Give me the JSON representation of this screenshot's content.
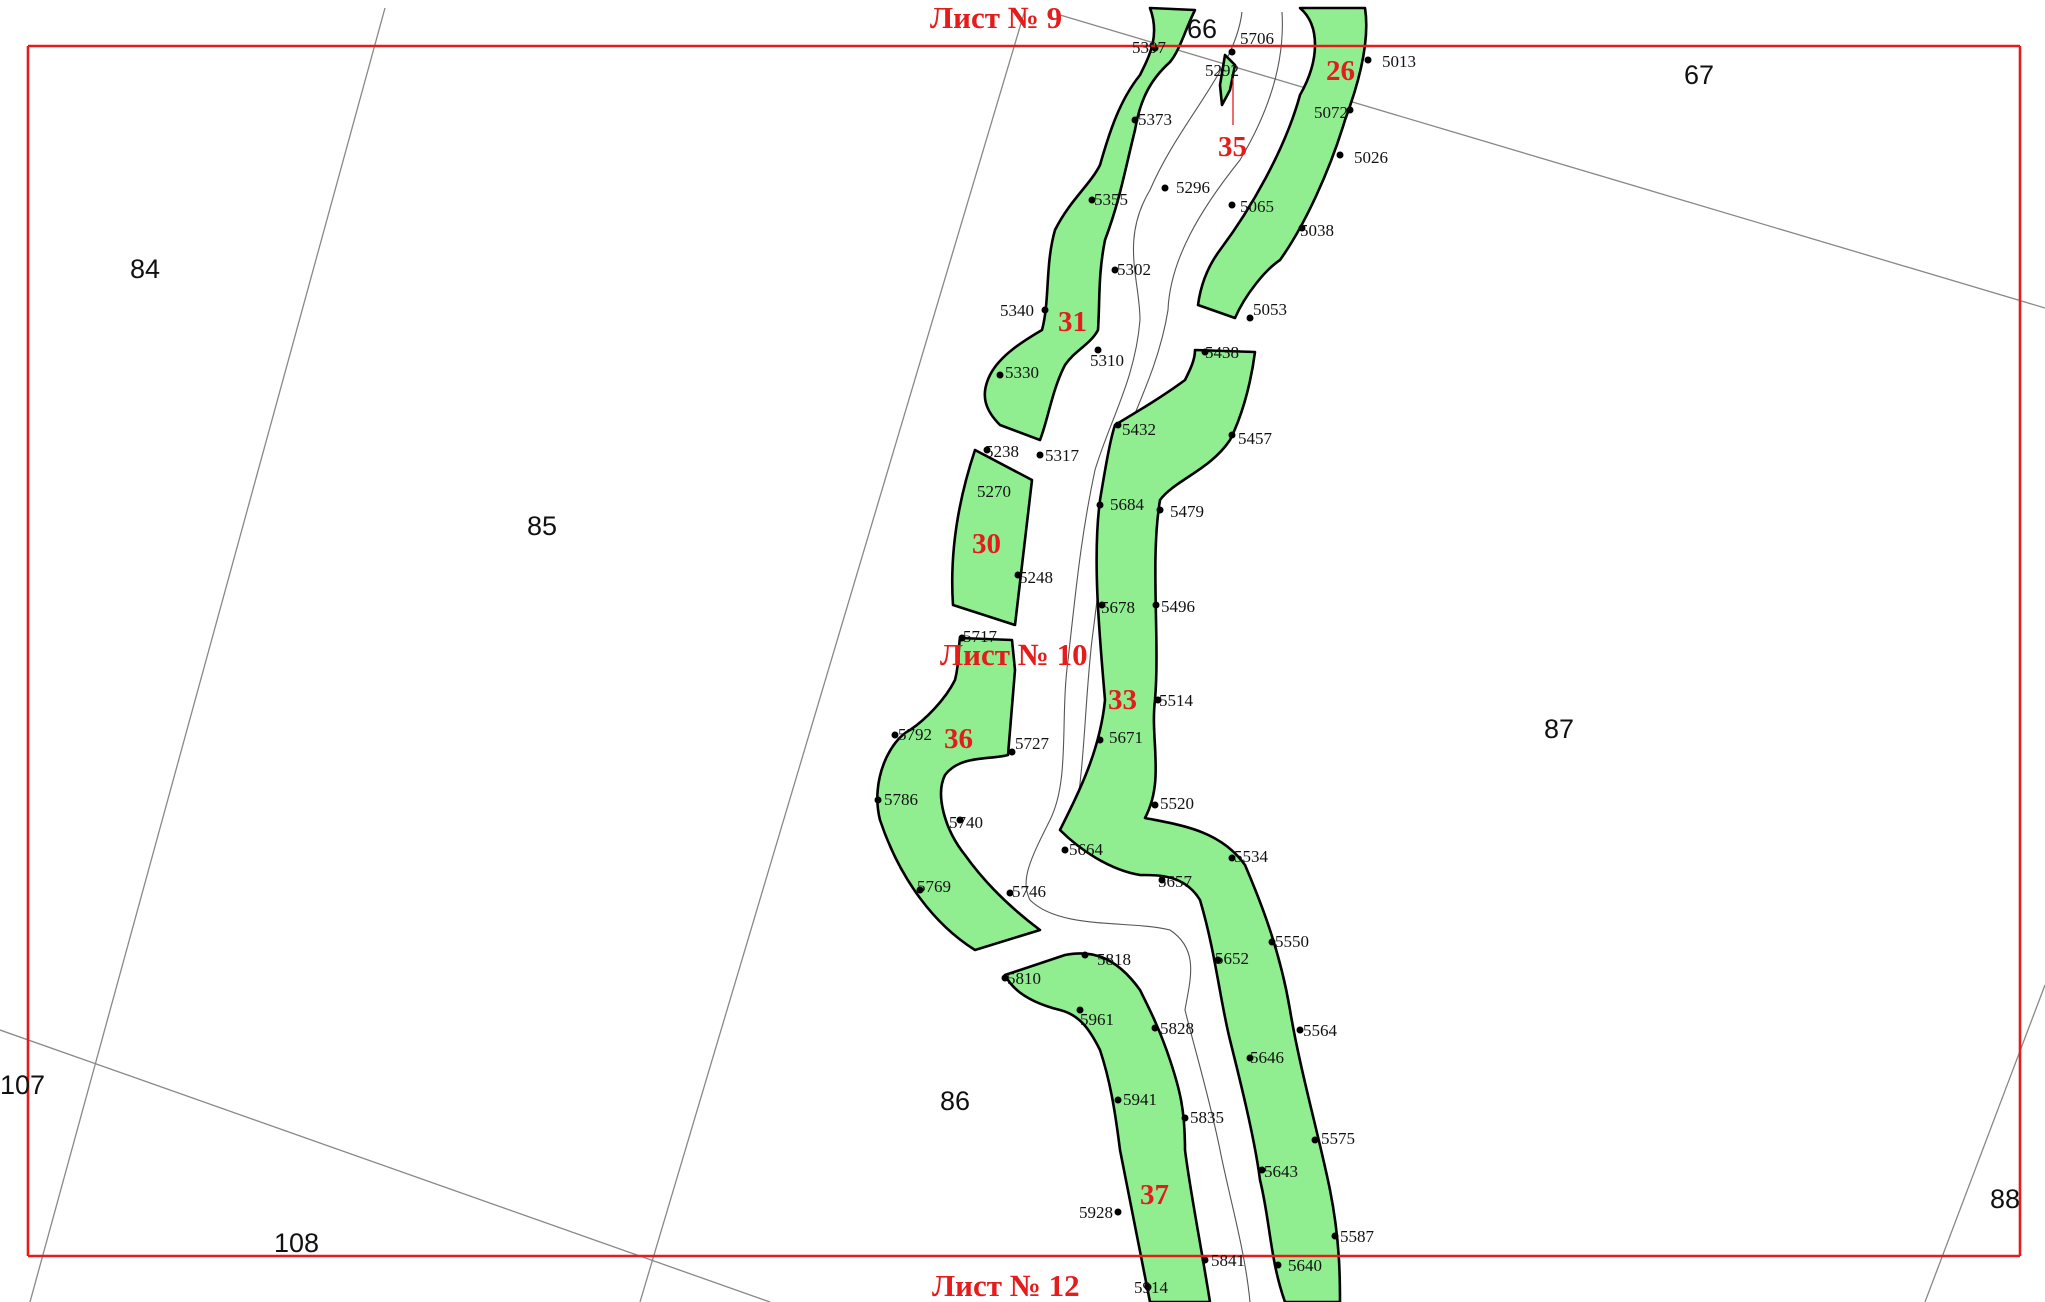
{
  "map": {
    "sheet_labels": {
      "top": "Лист № 9",
      "middle": "Лист № 10",
      "bottom": "Лист № 12"
    },
    "blocks": [
      "84",
      "85",
      "86",
      "87",
      "88",
      "66",
      "67",
      "107",
      "108"
    ],
    "parcels": [
      "26",
      "31",
      "35",
      "30",
      "33",
      "36",
      "37"
    ],
    "fill_color": "#90ee90",
    "sheet_line_color": "#e41c1c",
    "points": [
      "5397",
      "5706",
      "5292",
      "5013",
      "5373",
      "5072",
      "5026",
      "5355",
      "5296",
      "5065",
      "5038",
      "5302",
      "5340",
      "5053",
      "5310",
      "5438",
      "5330",
      "5432",
      "5457",
      "5238",
      "5317",
      "5270",
      "5684",
      "5479",
      "5248",
      "5678",
      "5496",
      "5717",
      "5514",
      "5792",
      "5727",
      "5671",
      "5786",
      "5740",
      "5520",
      "5664",
      "5534",
      "5769",
      "5746",
      "5657",
      "5818",
      "5550",
      "5810",
      "5652",
      "5961",
      "5828",
      "5564",
      "5646",
      "5941",
      "5835",
      "5575",
      "5643",
      "5928",
      "5587",
      "5841",
      "5640",
      "5914"
    ]
  }
}
